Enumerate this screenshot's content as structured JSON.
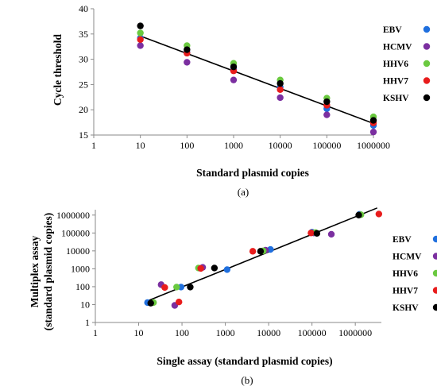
{
  "chart_data": [
    {
      "type": "scatter",
      "panel_label": "(a)",
      "xlabel": "Standard plasmid copies",
      "ylabel": "Cycle threshold",
      "x_scale": "log",
      "xlim": [
        1,
        1000000
      ],
      "ylim": [
        15,
        40
      ],
      "x_ticks": [
        "1",
        "10",
        "100",
        "1000",
        "10000",
        "100000",
        "1000000"
      ],
      "y_ticks": [
        "15",
        "20",
        "25",
        "30",
        "35",
        "40"
      ],
      "grid": false,
      "legend_position": "right",
      "series": [
        {
          "name": "EBV",
          "color": "#1f6fde",
          "x": [
            10,
            100,
            1000,
            10000,
            100000,
            1000000
          ],
          "y": [
            34.2,
            31.4,
            28.0,
            24.5,
            20.2,
            16.9
          ]
        },
        {
          "name": "HCMV",
          "color": "#7b2fa0",
          "x": [
            10,
            100,
            1000,
            10000,
            100000,
            1000000
          ],
          "y": [
            32.7,
            29.4,
            25.9,
            22.4,
            19.0,
            15.6
          ]
        },
        {
          "name": "HHV6",
          "color": "#6ac93f",
          "x": [
            10,
            100,
            1000,
            10000,
            100000,
            1000000
          ],
          "y": [
            35.2,
            32.7,
            29.2,
            25.9,
            22.3,
            18.6
          ]
        },
        {
          "name": "HHV7",
          "color": "#e81c1c",
          "x": [
            10,
            100,
            1000,
            10000,
            100000,
            1000000
          ],
          "y": [
            33.9,
            31.2,
            27.7,
            24.0,
            20.9,
            17.4
          ]
        },
        {
          "name": "KSHV",
          "color": "#000000",
          "x": [
            10,
            100,
            1000,
            10000,
            100000,
            1000000
          ],
          "y": [
            36.6,
            31.9,
            28.5,
            25.2,
            21.6,
            17.9
          ]
        }
      ],
      "trendline": {
        "x": [
          10,
          1000000
        ],
        "y": [
          34.6,
          17.3
        ]
      }
    },
    {
      "type": "scatter",
      "panel_label": "(b)",
      "xlabel": "Single assay (standard plasmid copies)",
      "ylabel": "Multiplex assay (standard plasmid copies)",
      "ylabel_lines": [
        "Multiplex assay",
        "(standard plasmid copies)"
      ],
      "x_scale": "log",
      "y_scale": "log",
      "xlim": [
        1,
        4000000
      ],
      "ylim": [
        1,
        2000000
      ],
      "x_ticks": [
        "1",
        "10",
        "100",
        "1000",
        "10000",
        "100000",
        "1000000"
      ],
      "y_ticks": [
        "1",
        "10",
        "100",
        "1000",
        "10000",
        "100000",
        "1000000"
      ],
      "grid": false,
      "legend_position": "right",
      "series": [
        {
          "name": "EBV",
          "color": "#1f6fde",
          "x": [
            16,
            95,
            1100,
            11000,
            100000,
            1250000
          ],
          "y": [
            13,
            95,
            900,
            12000,
            110000,
            1100000
          ]
        },
        {
          "name": "HCMV",
          "color": "#7b2fa0",
          "x": [
            33,
            68,
            300,
            8500,
            110000,
            280000
          ],
          "y": [
            130,
            9,
            1200,
            11000,
            100000,
            85000
          ]
        },
        {
          "name": "HHV6",
          "color": "#6ac93f",
          "x": [
            22,
            75,
            240,
            7500,
            120000,
            1350000
          ],
          "y": [
            13,
            95,
            1100,
            10000,
            105000,
            1050000
          ]
        },
        {
          "name": "HHV7",
          "color": "#e81c1c",
          "x": [
            40,
            85,
            270,
            4300,
            95000,
            3500000
          ],
          "y": [
            90,
            14,
            1050,
            9500,
            100000,
            1150000
          ]
        },
        {
          "name": "KSHV",
          "color": "#000000",
          "x": [
            19,
            155,
            560,
            6500,
            130000,
            1200000
          ],
          "y": [
            12,
            95,
            1100,
            9500,
            95000,
            1000000
          ]
        }
      ],
      "trendline": {
        "x": [
          15,
          3200000
        ],
        "y": [
          15,
          2500000
        ]
      }
    }
  ]
}
